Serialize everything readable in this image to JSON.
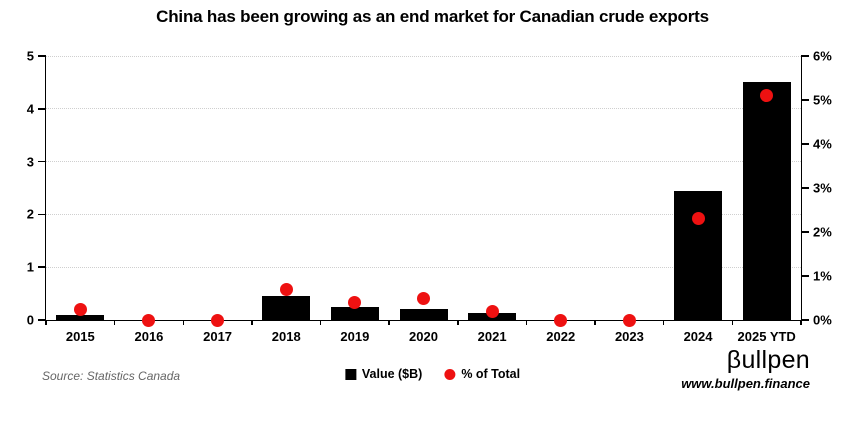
{
  "page": {
    "background": "#ffffff"
  },
  "chart_data": {
    "type": "bar",
    "title": "China has been growing as an end market for Canadian crude exports",
    "categories": [
      "2015",
      "2016",
      "2017",
      "2018",
      "2019",
      "2020",
      "2021",
      "2022",
      "2023",
      "2024",
      "2025 YTD"
    ],
    "series": [
      {
        "name": "Value ($B)",
        "type": "bar",
        "axis": "left",
        "color": "#000000",
        "marker": "square",
        "values": [
          0.1,
          0,
          0,
          0.45,
          0.25,
          0.2,
          0.13,
          0,
          0,
          2.45,
          4.5
        ]
      },
      {
        "name": "% of Total",
        "type": "scatter",
        "axis": "right",
        "color": "#ee1111",
        "marker": "circle",
        "values": [
          0.25,
          0,
          0,
          0.7,
          0.4,
          0.5,
          0.2,
          0,
          0,
          2.3,
          5.1
        ]
      }
    ],
    "left_axis": {
      "min": 0,
      "max": 5,
      "tick_labels": [
        "0",
        "1",
        "2",
        "3",
        "4",
        "5"
      ]
    },
    "right_axis": {
      "min": 0,
      "max": 6,
      "tick_labels": [
        "0%",
        "1%",
        "2%",
        "3%",
        "4%",
        "5%",
        "6%"
      ],
      "unit": "%"
    },
    "grid": "horizontal dotted lines at left-axis integers",
    "legend_position": "bottom-center"
  },
  "footer": {
    "source": "Source: Statistics Canada",
    "brand": {
      "logo": "βullpen",
      "url": "www.bullpen.finance"
    }
  },
  "colors": {
    "bar": "#000000",
    "dot": "#ee1111",
    "grid": "#cfcfcf",
    "axis": "#000000",
    "source_text": "#666666"
  }
}
